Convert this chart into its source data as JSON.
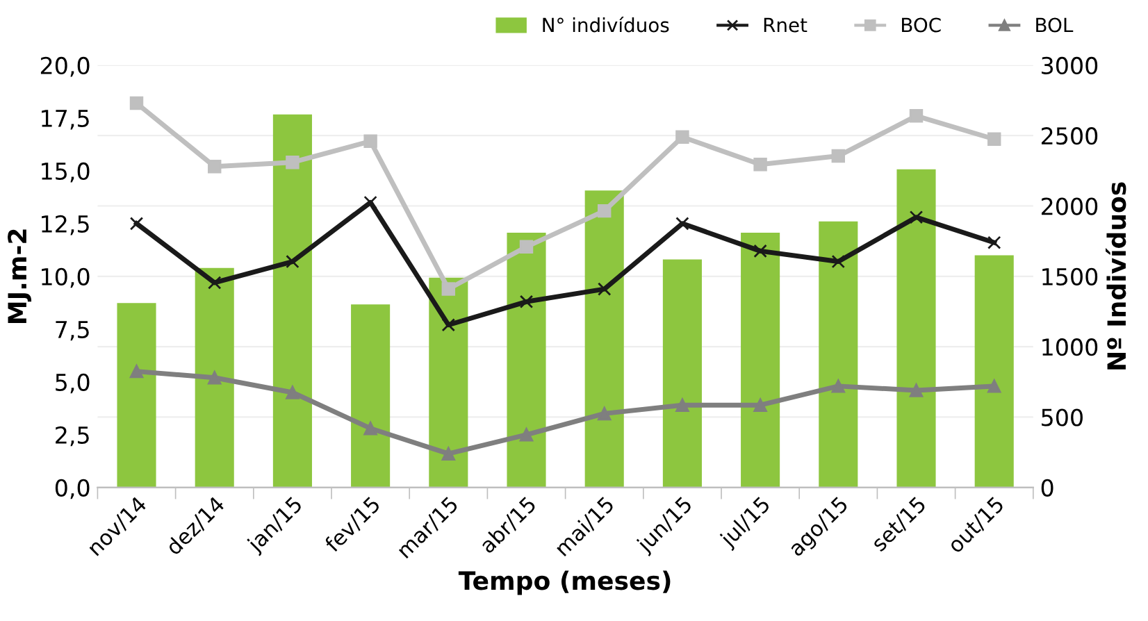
{
  "chart_data": {
    "type": "bar",
    "xlabel": "Tempo (meses)",
    "ylabel": "MJ.m-2",
    "y2label": "Nº Indivíduos",
    "categories": [
      "nov/14",
      "dez/14",
      "jan/15",
      "fev/15",
      "mar/15",
      "abr/15",
      "mai/15",
      "jun/15",
      "jul/15",
      "ago/15",
      "set/15",
      "out/15"
    ],
    "series": [
      {
        "name": "N° indivíduos",
        "axis": "y2",
        "color": "#8dc63f",
        "values": [
          1310,
          1560,
          2650,
          1300,
          1490,
          1810,
          2110,
          1620,
          1810,
          1890,
          2260,
          1650
        ]
      },
      {
        "name": "Rnet",
        "type": "line",
        "marker": "cross",
        "color": "#1a1a1a",
        "values": [
          12.5,
          9.7,
          10.7,
          13.5,
          7.7,
          8.8,
          9.4,
          12.5,
          11.2,
          10.7,
          12.8,
          11.6
        ]
      },
      {
        "name": "BOC",
        "type": "line",
        "marker": "square",
        "color": "#bfbfbf",
        "values": [
          18.2,
          15.2,
          15.4,
          16.4,
          9.4,
          11.4,
          13.1,
          16.6,
          15.3,
          15.7,
          17.6,
          16.5
        ]
      },
      {
        "name": "BOL",
        "type": "line",
        "marker": "triangle",
        "color": "#7f7f7f",
        "values": [
          5.5,
          5.2,
          4.5,
          2.8,
          1.6,
          2.5,
          3.5,
          3.9,
          3.9,
          4.8,
          4.6,
          4.8
        ]
      }
    ],
    "ylim": [
      0,
      20
    ],
    "yticks": [
      {
        "value": 0,
        "label": "0,0"
      },
      {
        "value": 2.5,
        "label": "2,5"
      },
      {
        "value": 5,
        "label": "5,0"
      },
      {
        "value": 7.5,
        "label": "7,5"
      },
      {
        "value": 10,
        "label": "10,0"
      },
      {
        "value": 12.5,
        "label": "12,5"
      },
      {
        "value": 15,
        "label": "15,0"
      },
      {
        "value": 17.5,
        "label": "17,5"
      },
      {
        "value": 20,
        "label": "20,0"
      }
    ],
    "y2lim": [
      0,
      3000
    ],
    "y2ticks": [
      0,
      500,
      1000,
      1500,
      2000,
      2500,
      3000
    ],
    "grid": "y",
    "legend": "top right"
  }
}
